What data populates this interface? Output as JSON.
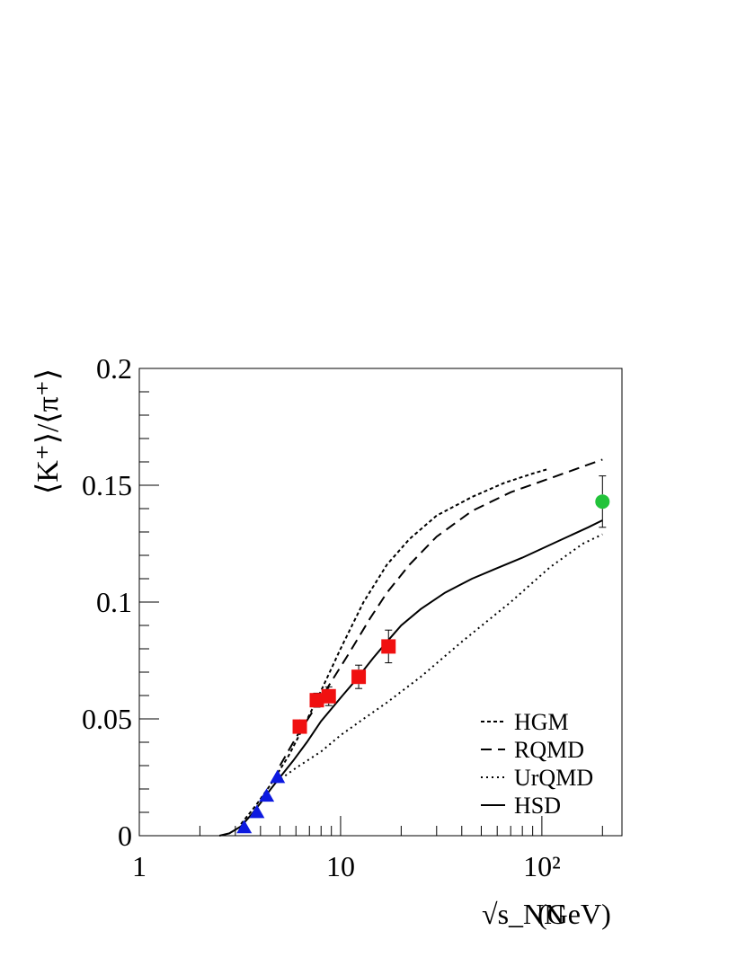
{
  "chart_data": {
    "type": "line",
    "xscale": "log",
    "xlim": [
      1,
      250
    ],
    "ylim": [
      0,
      0.2
    ],
    "xlabel": "(GeV)",
    "xlabel_symbol": "√s_NN",
    "ylabel": "⟨K⁺⟩/⟨π⁺⟩",
    "x_ticks": [
      {
        "value": 1,
        "label": "1"
      },
      {
        "value": 10,
        "label": "10"
      },
      {
        "value": 100,
        "label": "10²"
      }
    ],
    "y_ticks": [
      {
        "value": 0,
        "label": "0"
      },
      {
        "value": 0.05,
        "label": "0.05"
      },
      {
        "value": 0.1,
        "label": "0.1"
      },
      {
        "value": 0.15,
        "label": "0.15"
      },
      {
        "value": 0.2,
        "label": "0.2"
      }
    ],
    "legend_position": "bottom-right",
    "series": [
      {
        "name": "HGM",
        "style": "dotted-dense",
        "x": [
          3.2,
          3.8,
          4.5,
          5.5,
          6.5,
          8,
          10,
          13,
          17,
          22,
          30,
          45,
          65,
          90,
          108
        ],
        "y": [
          0.005,
          0.013,
          0.022,
          0.034,
          0.046,
          0.062,
          0.08,
          0.1,
          0.116,
          0.127,
          0.137,
          0.145,
          0.151,
          0.155,
          0.157
        ]
      },
      {
        "name": "RQMD",
        "style": "dashed",
        "x": [
          5,
          6,
          7.5,
          9,
          11,
          14,
          17,
          22,
          30,
          45,
          70,
          110,
          160,
          200
        ],
        "y": [
          0.03,
          0.042,
          0.055,
          0.066,
          0.078,
          0.093,
          0.104,
          0.116,
          0.128,
          0.139,
          0.147,
          0.153,
          0.158,
          0.161
        ]
      },
      {
        "name": "UrQMD",
        "style": "dotted-sparse",
        "x": [
          4.8,
          6,
          8,
          10,
          13,
          17,
          25,
          40,
          70,
          110,
          160,
          200
        ],
        "y": [
          0.023,
          0.029,
          0.036,
          0.043,
          0.05,
          0.057,
          0.068,
          0.083,
          0.1,
          0.115,
          0.125,
          0.129
        ]
      },
      {
        "name": "HSD",
        "style": "solid",
        "x": [
          2.5,
          2.8,
          3.2,
          3.6,
          4,
          4.5,
          5,
          5.8,
          6.8,
          8,
          10,
          12,
          14.5,
          17,
          20,
          25,
          33,
          45,
          58,
          80,
          120,
          170,
          200
        ],
        "y": [
          0,
          0.001,
          0.004,
          0.009,
          0.014,
          0.02,
          0.025,
          0.032,
          0.04,
          0.049,
          0.059,
          0.067,
          0.076,
          0.083,
          0.09,
          0.097,
          0.104,
          0.11,
          0.114,
          0.119,
          0.126,
          0.132,
          0.135
        ]
      }
    ],
    "markers": [
      {
        "shape": "triangle",
        "color": "#0d1ae0",
        "points": [
          {
            "x": 3.32,
            "y": 0.0035
          },
          {
            "x": 3.84,
            "y": 0.01
          },
          {
            "x": 4.29,
            "y": 0.017
          },
          {
            "x": 4.86,
            "y": 0.025
          }
        ]
      },
      {
        "shape": "square",
        "color": "#f01010",
        "points": [
          {
            "x": 6.27,
            "y": 0.0467
          },
          {
            "x": 7.62,
            "y": 0.058
          },
          {
            "x": 8.73,
            "y": 0.0597
          },
          {
            "x": 12.3,
            "y": 0.068
          },
          {
            "x": 17.3,
            "y": 0.081
          }
        ],
        "errors": [
          0.002,
          0.003,
          0.004,
          0.005,
          0.007
        ]
      },
      {
        "shape": "circle",
        "color": "#22c33a",
        "points": [
          {
            "x": 200,
            "y": 0.143
          }
        ],
        "errors": [
          0.011
        ]
      }
    ]
  }
}
